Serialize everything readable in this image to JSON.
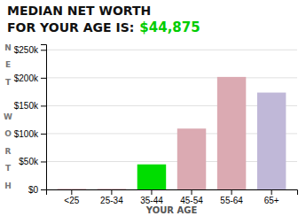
{
  "chart_data": {
    "type": "bar",
    "title": "MEDIAN NET WORTH",
    "subtitle": "FOR YOUR AGE IS:",
    "annotations": [
      {
        "text": "$44,875",
        "color": "#00cc00"
      }
    ],
    "xlabel": "YOUR AGE",
    "ylabel": "NET WORTH",
    "categories": [
      "<25",
      "25-34",
      "35-44",
      "45-54",
      "55-64",
      "65+"
    ],
    "values": [
      1000,
      1000,
      44875,
      109000,
      201500,
      173500
    ],
    "colors": [
      "#dbaab2",
      "#dbaab2",
      "#00dd00",
      "#dbaab2",
      "#dbaab2",
      "#c0b8d8"
    ],
    "ylim": [
      0,
      260000
    ],
    "yticks": [
      {
        "value": 0,
        "label": "$0"
      },
      {
        "value": 50000,
        "label": "$50k"
      },
      {
        "value": 100000,
        "label": "$100k"
      },
      {
        "value": 150000,
        "label": "$150k"
      },
      {
        "value": 200000,
        "label": "$200k"
      },
      {
        "value": 250000,
        "label": "$250k"
      }
    ],
    "grid": true
  }
}
